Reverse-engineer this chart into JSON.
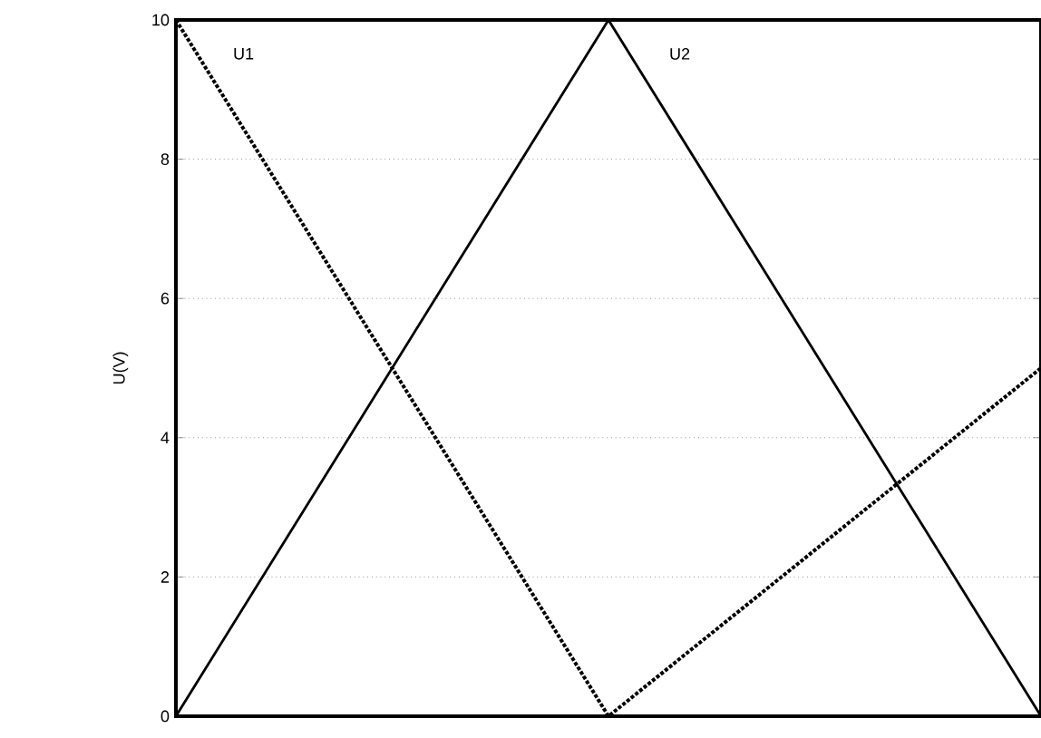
{
  "chart_data": {
    "type": "line",
    "ylabel": "U(V)",
    "categories": [
      null,
      null,
      null
    ],
    "series": [
      {
        "name": "U1",
        "color": "#000000",
        "line_style": "dotted",
        "values": [
          10,
          0,
          5
        ]
      },
      {
        "name": "U2",
        "color": "#000000",
        "line_style": "solid",
        "values": [
          0,
          10,
          0
        ]
      }
    ],
    "ylim": [
      0,
      10
    ],
    "yticks": [
      0,
      2,
      4,
      6,
      8,
      10
    ],
    "grid": "y"
  }
}
